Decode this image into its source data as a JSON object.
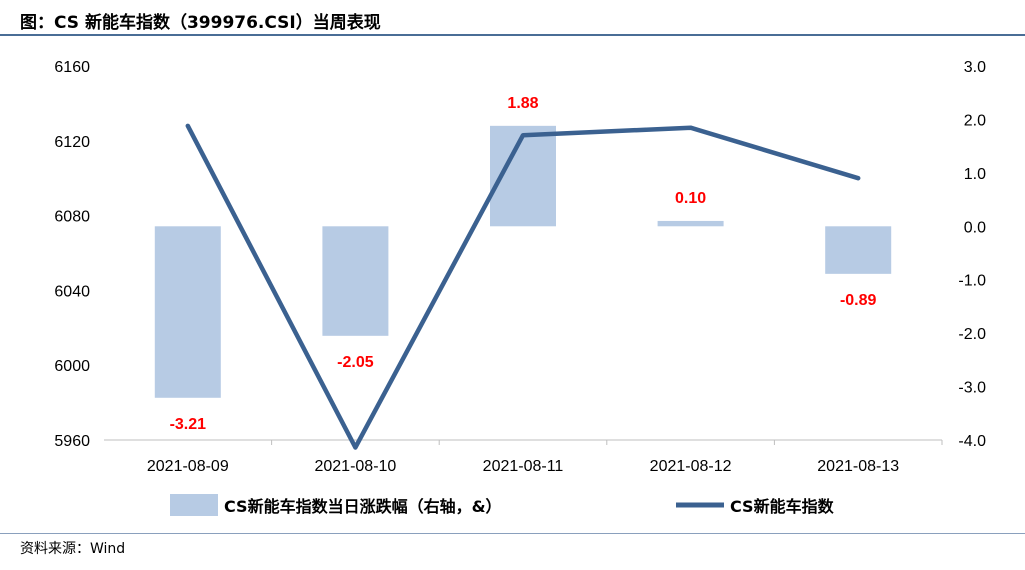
{
  "header": {
    "title": "图：CS 新能车指数（399976.CSI）当周表现"
  },
  "footer": {
    "source": "资料来源：Wind"
  },
  "colors": {
    "bar": "#b7cbe4",
    "line": "#3b6190",
    "label": "#ff0000",
    "axis": "#bfbfbf"
  },
  "chart_data": {
    "type": "bar",
    "categories": [
      "2021-08-09",
      "2021-08-10",
      "2021-08-11",
      "2021-08-12",
      "2021-08-13"
    ],
    "series": [
      {
        "name": "CS新能车指数当日涨跌幅（右轴，&）",
        "type": "bar",
        "axis": "right",
        "values": [
          -3.21,
          -2.05,
          1.88,
          0.1,
          -0.89
        ],
        "labels": [
          "-3.21",
          "-2.05",
          "1.88",
          "0.10",
          "-0.89"
        ]
      },
      {
        "name": "CS新能车指数",
        "type": "line",
        "axis": "left",
        "values": [
          6128,
          5956,
          6123,
          6127,
          6100
        ]
      }
    ],
    "y_left": {
      "min": 5960,
      "max": 6160,
      "ticks": [
        "6160",
        "6120",
        "6080",
        "6040",
        "6000",
        "5960"
      ]
    },
    "y_right": {
      "min": -4.0,
      "max": 3.0,
      "ticks": [
        "3.0",
        "2.0",
        "1.0",
        "0.0",
        "-1.0",
        "-2.0",
        "-3.0",
        "-4.0"
      ]
    },
    "legend_position": "bottom"
  }
}
